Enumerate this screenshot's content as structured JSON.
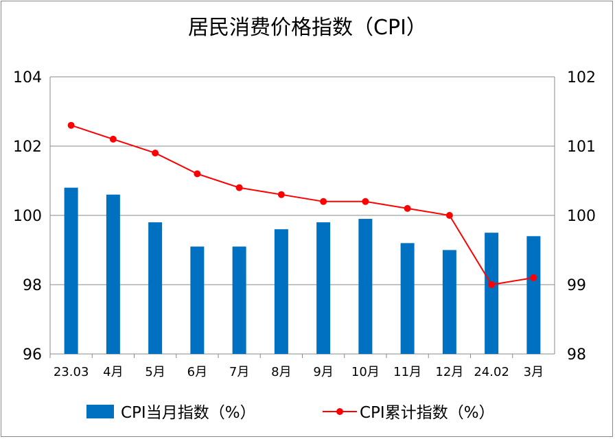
{
  "chart_data": {
    "type": "bar",
    "title": "居民消费价格指数（CPI）",
    "categories": [
      "23.03",
      "4月",
      "5月",
      "6月",
      "7月",
      "8月",
      "9月",
      "10月",
      "11月",
      "12月",
      "24.02",
      "3月"
    ],
    "series": [
      {
        "name": "CPI当月指数（%）",
        "type": "bar",
        "axis": "left",
        "color": "#0070C0",
        "values": [
          100.8,
          100.6,
          99.8,
          99.1,
          99.1,
          99.6,
          99.8,
          99.9,
          99.2,
          99.0,
          99.5,
          99.4
        ]
      },
      {
        "name": "CPI累计指数（%）",
        "type": "line",
        "axis": "right",
        "color": "#FF0000",
        "values": [
          101.3,
          101.1,
          100.9,
          100.6,
          100.4,
          100.3,
          100.2,
          100.2,
          100.1,
          100.0,
          99.0,
          99.1
        ]
      }
    ],
    "left_axis": {
      "ylim": [
        96,
        104
      ],
      "ticks": [
        "96",
        "98",
        "100",
        "102",
        "104"
      ]
    },
    "right_axis": {
      "ylim": [
        98,
        102
      ],
      "ticks": [
        "98",
        "99",
        "100",
        "101",
        "102"
      ]
    },
    "grid": true,
    "legend": "bottom"
  }
}
